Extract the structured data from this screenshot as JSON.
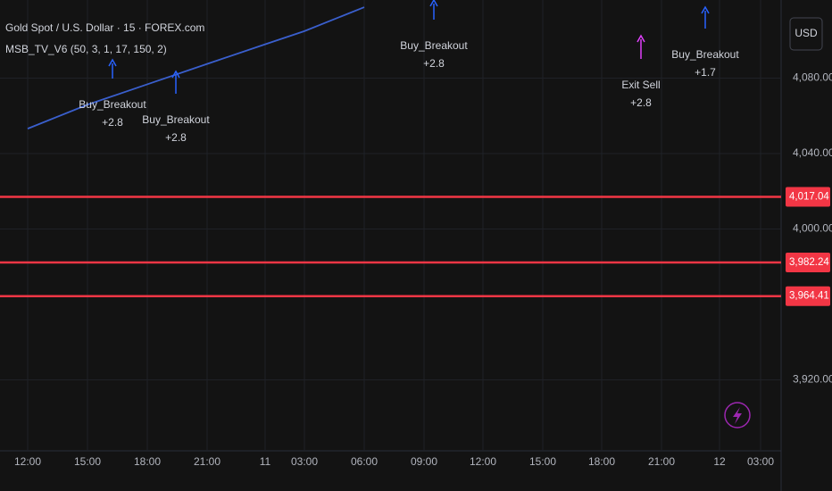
{
  "chart_data": {
    "type": "line",
    "title": "Gold Spot / U.S. Dollar · 15 · FOREX.com",
    "subtitle": "MSB_TV_V6 (50, 3, 1, 17, 150, 2)",
    "currency": "USD",
    "categories": [
      "12:00",
      "15:00",
      "18:00",
      "21:00",
      "11",
      "03:00",
      "06:00",
      "09:00",
      "12:00",
      "15:00",
      "18:00",
      "21:00",
      "12",
      "03:00"
    ],
    "series": [
      {
        "color": "#3a5fcd",
        "values": [
          4053.2,
          4065.9,
          4076.7,
          4087.5,
          4097.9,
          4104.9,
          4117.6,
          null,
          null,
          null,
          null,
          null,
          null,
          null
        ]
      }
    ],
    "ylim": [
      3882.4,
      4121.4
    ],
    "yticks": [
      {
        "value": 3920,
        "label": "3,920.00"
      },
      {
        "value": 4000,
        "label": "4,000.00"
      },
      {
        "value": 4040,
        "label": "4,040.00"
      },
      {
        "value": 4080,
        "label": "4,080.00"
      }
    ],
    "grid": true,
    "price_lines": [
      {
        "value": 4017.04,
        "label": "4,017.04"
      },
      {
        "value": 3982.24,
        "label": "3,982.24"
      },
      {
        "value": 3964.41,
        "label": "3,964.41"
      }
    ],
    "price_line_color": "#f23645",
    "annotations": [
      {
        "text": "Buy_Breakout",
        "sub": "+2.8"
      },
      {
        "text": "Buy_Breakout",
        "sub": "+2.8"
      },
      {
        "text": "Buy_Breakout",
        "sub": "+2.8"
      },
      {
        "text": "Exit Sell",
        "sub": "+2.8"
      },
      {
        "text": "Buy_Breakout",
        "sub": "+1.7"
      }
    ]
  }
}
